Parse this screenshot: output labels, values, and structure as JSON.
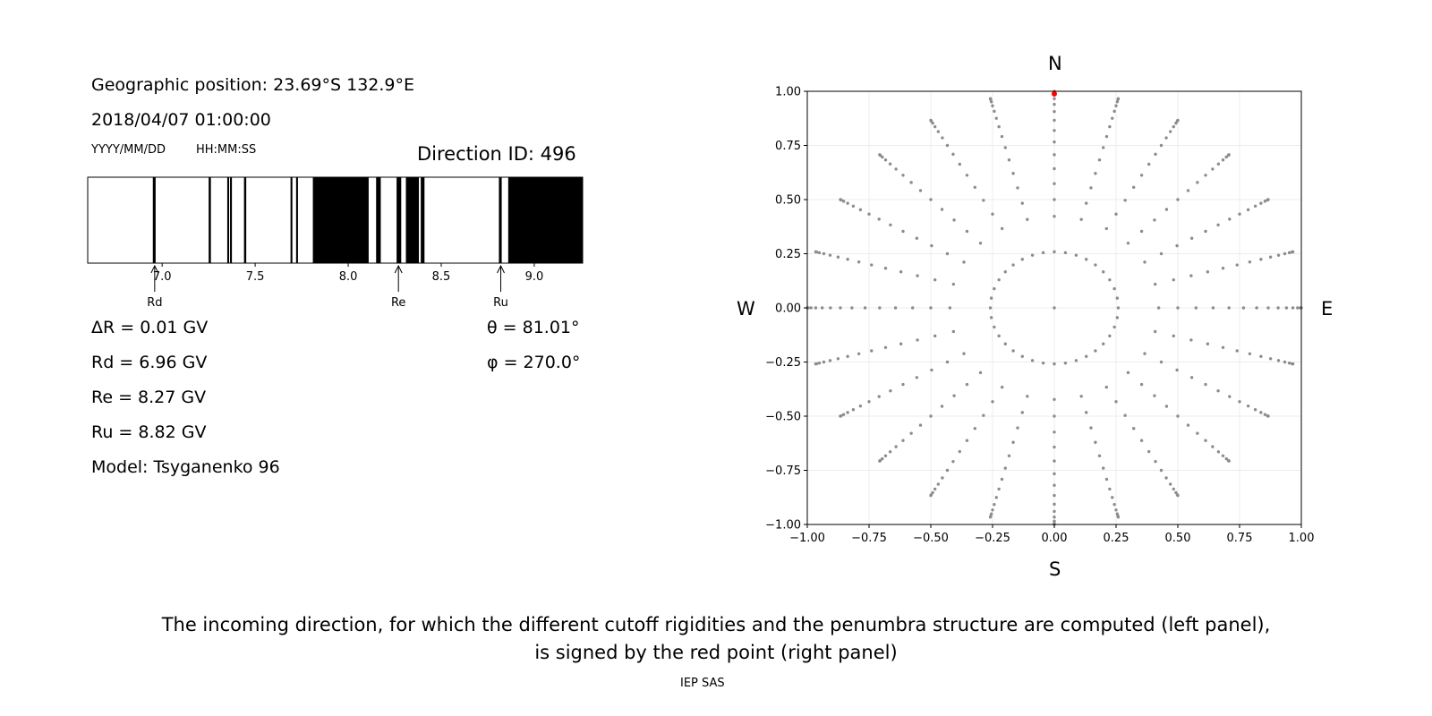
{
  "left_panel": {
    "geo_position": "Geographic position: 23.69°S 132.9°E",
    "datetime": "2018/04/07 01:00:00",
    "date_format": "YYYY/MM/DD",
    "time_format": "HH:MM:SS",
    "direction_id": "Direction ID: 496",
    "delta_r": "ΔR = 0.01 GV",
    "rd": "Rd = 6.96 GV",
    "re": "Re = 8.27 GV",
    "ru": "Ru = 8.82 GV",
    "model": "Model: Tsyganenko 96",
    "theta": "θ = 81.01°",
    "phi": "φ = 270.0°"
  },
  "compass": {
    "n": "N",
    "s": "S",
    "w": "W",
    "e": "E"
  },
  "caption": {
    "line1": "The incoming direction, for which the different cutoff rigidities and the penumbra structure are computed (left panel),",
    "line2": "is signed by the red point (right panel)",
    "credit": "IEP SAS"
  },
  "chart_data": [
    {
      "type": "bar",
      "name": "penumbra-structure",
      "xlim": [
        6.6,
        9.26
      ],
      "xticks": [
        7.0,
        7.5,
        8.0,
        8.5,
        9.0
      ],
      "xtick_labels": [
        "7.0",
        "7.5",
        "8.0",
        "8.5",
        "9.0"
      ],
      "forbidden_bands": [
        [
          6.95,
          6.965
        ],
        [
          7.25,
          7.262
        ],
        [
          7.35,
          7.36
        ],
        [
          7.365,
          7.375
        ],
        [
          7.44,
          7.452
        ],
        [
          7.69,
          7.7
        ],
        [
          7.72,
          7.73
        ],
        [
          7.81,
          8.11
        ],
        [
          8.15,
          8.175
        ],
        [
          8.26,
          8.285
        ],
        [
          8.31,
          8.38
        ],
        [
          8.39,
          8.41
        ],
        [
          8.81,
          8.825
        ],
        [
          8.86,
          9.26
        ]
      ],
      "markers": [
        {
          "label": "Rd",
          "x": 6.96
        },
        {
          "label": "Re",
          "x": 8.27
        },
        {
          "label": "Ru",
          "x": 8.82
        }
      ],
      "markers_color": "#000000",
      "band_color": "#000000"
    },
    {
      "type": "scatter",
      "name": "direction-map",
      "xlim": [
        -1.0,
        1.0
      ],
      "ylim": [
        -1.0,
        1.0
      ],
      "xticks": [
        -1.0,
        -0.75,
        -0.5,
        -0.25,
        0.0,
        0.25,
        0.5,
        0.75,
        1.0
      ],
      "yticks": [
        -1.0,
        -0.75,
        -0.5,
        -0.25,
        0.0,
        0.25,
        0.5,
        0.75,
        1.0
      ],
      "xtick_labels": [
        "−1.00",
        "−0.75",
        "−0.50",
        "−0.25",
        "0.00",
        "0.25",
        "0.50",
        "0.75",
        "1.00"
      ],
      "ytick_labels": [
        "−1.00",
        "−0.75",
        "−0.50",
        "−0.25",
        "0.00",
        "0.25",
        "0.50",
        "0.75",
        "1.00"
      ],
      "grid": true,
      "directions": {
        "zenith_step_deg": 5,
        "max_zenith_deg": 90,
        "azimuth_step_deg": 15,
        "rings": [
          {
            "zenith_deg": 15,
            "azimuth_step_deg": 10
          },
          {
            "zenith_deg": 25,
            "azimuth_step_deg": 15
          }
        ]
      },
      "points_color": "#8c8c8c",
      "selected_point": {
        "x": 0.0,
        "y": 0.988
      },
      "selected_color": "#ff0000"
    }
  ]
}
